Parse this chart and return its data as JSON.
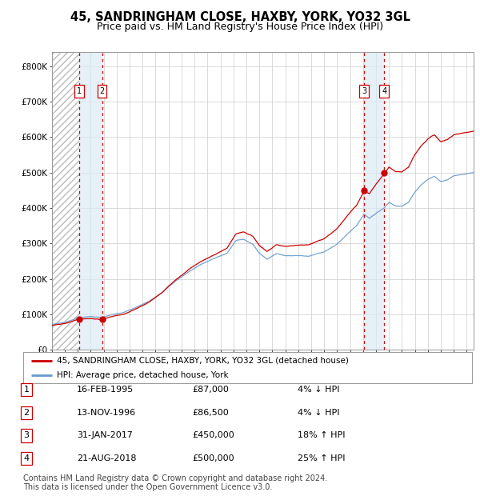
{
  "title": "45, SANDRINGHAM CLOSE, HAXBY, YORK, YO32 3GL",
  "subtitle": "Price paid vs. HM Land Registry's House Price Index (HPI)",
  "legend_line1": "45, SANDRINGHAM CLOSE, HAXBY, YORK, YO32 3GL (detached house)",
  "legend_line2": "HPI: Average price, detached house, York",
  "footer1": "Contains HM Land Registry data © Crown copyright and database right 2024.",
  "footer2": "This data is licensed under the Open Government Licence v3.0.",
  "transactions": [
    {
      "num": 1,
      "date": "16-FEB-1995",
      "date_x": 1995.12,
      "price": 87000,
      "pct": "4%",
      "dir": "↓"
    },
    {
      "num": 2,
      "date": "13-NOV-1996",
      "date_x": 1996.87,
      "price": 86500,
      "pct": "4%",
      "dir": "↓"
    },
    {
      "num": 3,
      "date": "31-JAN-2017",
      "date_x": 2017.08,
      "price": 450000,
      "pct": "18%",
      "dir": "↑"
    },
    {
      "num": 4,
      "date": "21-AUG-2018",
      "date_x": 2018.63,
      "price": 500000,
      "pct": "25%",
      "dir": "↑"
    }
  ],
  "xlim": [
    1993.0,
    2025.5
  ],
  "ylim": [
    0,
    840000
  ],
  "yticks": [
    0,
    100000,
    200000,
    300000,
    400000,
    500000,
    600000,
    700000,
    800000
  ],
  "ytick_labels": [
    "£0",
    "£100K",
    "£200K",
    "£300K",
    "£400K",
    "£500K",
    "£600K",
    "£700K",
    "£800K"
  ],
  "xticks": [
    1993,
    1994,
    1995,
    1996,
    1997,
    1998,
    1999,
    2000,
    2001,
    2002,
    2003,
    2004,
    2005,
    2006,
    2007,
    2008,
    2009,
    2010,
    2011,
    2012,
    2013,
    2014,
    2015,
    2016,
    2017,
    2018,
    2019,
    2020,
    2021,
    2022,
    2023,
    2024,
    2025
  ],
  "line_color_red": "#cc0000",
  "line_color_blue": "#6699cc",
  "dot_color": "#cc0000",
  "vline_color": "#cc0000",
  "shade_color": "#daeaf5",
  "grid_color": "#cccccc",
  "background_color": "#ffffff",
  "title_fontsize": 10.5,
  "subtitle_fontsize": 9,
  "axis_fontsize": 7.5,
  "legend_fontsize": 7.5,
  "table_fontsize": 8,
  "footer_fontsize": 7
}
